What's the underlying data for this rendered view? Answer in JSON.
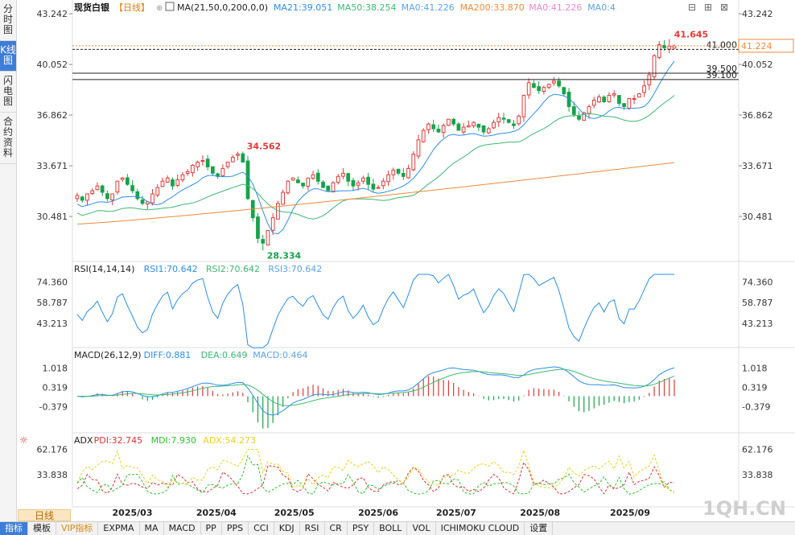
{
  "side_tabs": [
    "分时图",
    "K线图",
    "闪电图",
    "合约资料"
  ],
  "active_side_tab": 1,
  "main_panel": {
    "instrument": "现货白银",
    "period": "【日线】",
    "ma_title": "MA(21,50,0,200,0,0)",
    "ma_values": [
      {
        "label": "MA21:39.051",
        "color": "#2b8ee8"
      },
      {
        "label": "MA50:38.254",
        "color": "#3db872"
      },
      {
        "label": "MA0:41.226",
        "color": "#5ba4ea"
      },
      {
        "label": "MA200:33.870",
        "color": "#f08a3a"
      },
      {
        "label": "MA0:41.226",
        "color": "#e687d8"
      },
      {
        "label": "MA0:4",
        "color": "#5ba4ea"
      }
    ],
    "y_ticks": [
      "43.242",
      "40.052",
      "36.862",
      "33.671",
      "30.481"
    ],
    "high_label": "41.645",
    "swing_high_label": "34.562",
    "low_label": "28.334",
    "current_price": "41.224",
    "levels": [
      {
        "value": 41.0,
        "label": "41.000",
        "style": "dashed"
      },
      {
        "value": 39.5,
        "label": "39.500",
        "style": "solid"
      },
      {
        "value": 39.1,
        "label": "39.100",
        "style": "solid"
      }
    ]
  },
  "rsi_panel": {
    "title": "RSI(14,14,14)",
    "values": [
      {
        "label": "RSI1:70.642",
        "color": "#2b8ee8"
      },
      {
        "label": "RSI2:70.642",
        "color": "#3db872"
      },
      {
        "label": "RSI3:70.642",
        "color": "#5ba4ea"
      }
    ],
    "y_ticks": [
      "74.360",
      "58.787",
      "43.213"
    ]
  },
  "macd_panel": {
    "title": "MACD(26,12,9)",
    "values": [
      {
        "label": "DIFF:0.881",
        "color": "#2b8ee8"
      },
      {
        "label": "DEA:0.649",
        "color": "#3db872"
      },
      {
        "label": "MACD:0.464",
        "color": "#5ba4ea"
      }
    ],
    "y_ticks": [
      "1.018",
      "0.319",
      "-0.379"
    ]
  },
  "adx_panel": {
    "title": "ADX",
    "values": [
      {
        "label": "PDI:32.745",
        "color": "#d63333"
      },
      {
        "label": "MDI:7.930",
        "color": "#2fbf2f"
      },
      {
        "label": "ADX:54.273",
        "color": "#e5d21c"
      }
    ],
    "y_ticks": [
      "62.176",
      "33.838"
    ]
  },
  "x_labels": [
    "2025/03",
    "2025/04",
    "2025/05",
    "2025/06",
    "2025/07",
    "2025/08",
    "2025/09"
  ],
  "period_tag": "日线",
  "watermark": "1QH.CN",
  "bottom_tabs": [
    "指标",
    "模板",
    "VIP指标",
    "EXPMA",
    "MA",
    "MACD",
    "PP",
    "PPS",
    "CCI",
    "KDJ",
    "RSI",
    "CR",
    "PSY",
    "BOLL",
    "VOL",
    "ICHIMOKU CLOUD",
    "设置"
  ],
  "active_bottom_tab": 0,
  "chart_data": {
    "type": "candlestick",
    "title": "现货白银【日线】",
    "x_range": [
      "2025/02",
      "2025/09"
    ],
    "ylim": [
      28.0,
      43.6
    ],
    "close_approx": [
      31.8,
      31.5,
      31.9,
      32.1,
      32.4,
      32.0,
      31.6,
      31.9,
      32.7,
      32.9,
      32.5,
      32.1,
      31.6,
      31.3,
      31.4,
      31.9,
      32.3,
      32.7,
      32.9,
      32.4,
      32.8,
      33.1,
      33.3,
      33.7,
      33.9,
      34.0,
      33.6,
      33.2,
      33.0,
      33.5,
      33.9,
      34.2,
      34.4,
      33.9,
      31.6,
      30.4,
      29.1,
      28.8,
      29.6,
      30.4,
      31.3,
      32.0,
      32.7,
      32.9,
      32.6,
      32.4,
      32.9,
      33.1,
      32.7,
      32.3,
      32.1,
      32.6,
      33.0,
      33.2,
      32.7,
      32.4,
      32.6,
      32.9,
      32.5,
      32.2,
      32.3,
      32.7,
      33.1,
      33.4,
      33.2,
      33.0,
      33.5,
      34.4,
      35.3,
      35.9,
      36.3,
      36.0,
      35.8,
      36.2,
      36.6,
      36.3,
      35.9,
      36.1,
      36.2,
      36.4,
      36.1,
      35.8,
      36.0,
      36.4,
      36.7,
      36.6,
      36.4,
      36.2,
      36.8,
      38.1,
      38.9,
      38.6,
      38.4,
      38.6,
      38.8,
      39.0,
      38.7,
      38.2,
      37.4,
      36.9,
      36.6,
      37.0,
      37.4,
      37.8,
      38.0,
      37.7,
      38.1,
      38.2,
      37.6,
      37.4,
      37.9,
      37.9,
      38.2,
      38.7,
      39.4,
      40.6,
      41.3,
      41.1,
      41.2,
      41.22
    ],
    "ma_series": [
      {
        "name": "MA21",
        "start": 30.7,
        "end": 39.05
      },
      {
        "name": "MA50",
        "start": 30.3,
        "end": 38.25
      },
      {
        "name": "MA200",
        "start": 30.0,
        "end": 33.87
      }
    ],
    "high_marker": 41.645,
    "low_marker": 28.334,
    "swing_high_marker": 34.562,
    "last": 41.224,
    "levels": [
      41.0,
      39.5,
      39.1
    ]
  }
}
